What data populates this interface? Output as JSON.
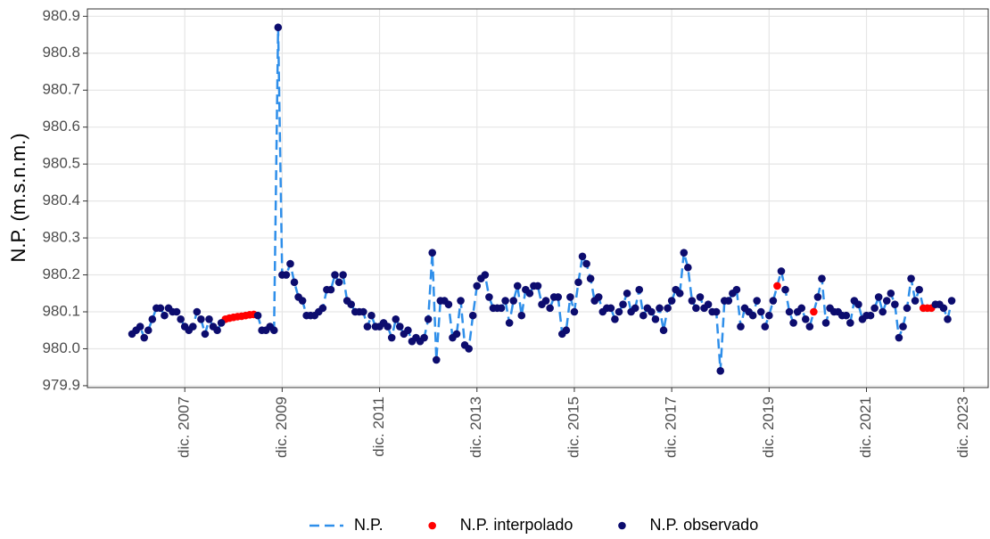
{
  "chart_data": {
    "type": "line",
    "ylabel": "N.P. (m.s.n.m.)",
    "x": [
      "2006-11",
      "2006-12",
      "2007-01",
      "2007-02",
      "2007-03",
      "2007-04",
      "2007-05",
      "2007-06",
      "2007-07",
      "2007-08",
      "2007-09",
      "2007-10",
      "2007-11",
      "2007-12",
      "2008-01",
      "2008-02",
      "2008-03",
      "2008-04",
      "2008-05",
      "2008-06",
      "2008-07",
      "2008-08",
      "2008-09",
      "2008-10",
      "2008-11",
      "2008-12",
      "2009-01",
      "2009-02",
      "2009-03",
      "2009-04",
      "2009-05",
      "2009-06",
      "2009-07",
      "2009-08",
      "2009-09",
      "2009-10",
      "2009-11",
      "2009-12",
      "2010-01",
      "2010-02",
      "2010-03",
      "2010-04",
      "2010-05",
      "2010-06",
      "2010-07",
      "2010-08",
      "2010-09",
      "2010-10",
      "2010-11",
      "2010-12",
      "2011-01",
      "2011-02",
      "2011-03",
      "2011-04",
      "2011-05",
      "2011-06",
      "2011-07",
      "2011-08",
      "2011-09",
      "2011-10",
      "2011-11",
      "2011-12",
      "2012-01",
      "2012-02",
      "2012-03",
      "2012-04",
      "2012-05",
      "2012-06",
      "2012-07",
      "2012-08",
      "2012-09",
      "2012-10",
      "2012-11",
      "2012-12",
      "2013-01",
      "2013-02",
      "2013-03",
      "2013-04",
      "2013-05",
      "2013-06",
      "2013-07",
      "2013-08",
      "2013-09",
      "2013-10",
      "2013-11",
      "2013-12",
      "2014-01",
      "2014-02",
      "2014-03",
      "2014-04",
      "2014-05",
      "2014-06",
      "2014-07",
      "2014-08",
      "2014-09",
      "2014-10",
      "2014-11",
      "2014-12",
      "2015-01",
      "2015-02",
      "2015-03",
      "2015-04",
      "2015-05",
      "2015-06",
      "2015-07",
      "2015-08",
      "2015-09",
      "2015-10",
      "2015-11",
      "2015-12",
      "2016-01",
      "2016-02",
      "2016-03",
      "2016-04",
      "2016-05",
      "2016-06",
      "2016-07",
      "2016-08",
      "2016-09",
      "2016-10",
      "2016-11",
      "2016-12",
      "2017-01",
      "2017-02",
      "2017-03",
      "2017-04",
      "2017-05",
      "2017-06",
      "2017-07",
      "2017-08",
      "2017-09",
      "2017-10",
      "2017-11",
      "2017-12",
      "2018-01",
      "2018-02",
      "2018-03",
      "2018-04",
      "2018-05",
      "2018-06",
      "2018-07",
      "2018-08",
      "2018-09",
      "2018-10",
      "2018-11",
      "2018-12",
      "2019-01",
      "2019-02",
      "2019-03",
      "2019-04",
      "2019-05",
      "2019-06",
      "2019-07",
      "2019-08",
      "2019-09",
      "2019-10",
      "2019-11",
      "2019-12",
      "2020-01",
      "2020-02",
      "2020-03",
      "2020-04",
      "2020-05",
      "2020-06",
      "2020-07",
      "2020-08",
      "2020-09",
      "2020-10",
      "2020-11",
      "2020-12",
      "2021-01",
      "2021-02",
      "2021-03",
      "2021-04",
      "2021-05",
      "2021-06",
      "2021-07",
      "2021-08",
      "2021-09",
      "2021-10",
      "2021-11",
      "2021-12",
      "2022-01",
      "2022-02",
      "2022-03",
      "2022-04",
      "2022-05",
      "2022-06",
      "2022-07",
      "2022-08",
      "2022-09",
      "2022-10",
      "2022-11",
      "2022-12",
      "2023-01",
      "2023-02",
      "2023-03",
      "2023-04",
      "2023-05",
      "2023-06",
      "2023-07",
      "2023-08",
      "2023-09"
    ],
    "series": [
      {
        "name": "N.P.",
        "color": "#2f8fea",
        "style": "dashed",
        "values": [
          980.04,
          980.05,
          980.06,
          980.03,
          980.05,
          980.08,
          980.11,
          980.11,
          980.09,
          980.11,
          980.1,
          980.1,
          980.08,
          980.06,
          980.05,
          980.06,
          980.1,
          980.08,
          980.04,
          980.08,
          980.06,
          980.05,
          980.07,
          980.08,
          980.083,
          980.085,
          980.087,
          980.088,
          980.09,
          980.092,
          980.093,
          980.09,
          980.05,
          980.05,
          980.06,
          980.05,
          980.87,
          980.2,
          980.2,
          980.23,
          980.18,
          980.14,
          980.13,
          980.09,
          980.09,
          980.09,
          980.1,
          980.11,
          980.16,
          980.16,
          980.2,
          980.18,
          980.2,
          980.13,
          980.12,
          980.1,
          980.1,
          980.1,
          980.06,
          980.09,
          980.06,
          980.06,
          980.07,
          980.06,
          980.03,
          980.08,
          980.06,
          980.04,
          980.05,
          980.02,
          980.03,
          980.02,
          980.03,
          980.08,
          980.26,
          979.97,
          980.13,
          980.13,
          980.12,
          980.03,
          980.04,
          980.13,
          980.01,
          980,
          980.09,
          980.17,
          980.19,
          980.2,
          980.14,
          980.11,
          980.11,
          980.11,
          980.13,
          980.07,
          980.13,
          980.17,
          980.09,
          980.16,
          980.15,
          980.17,
          980.17,
          980.12,
          980.13,
          980.11,
          980.14,
          980.14,
          980.04,
          980.05,
          980.14,
          980.1,
          980.18,
          980.25,
          980.23,
          980.19,
          980.13,
          980.14,
          980.1,
          980.11,
          980.11,
          980.08,
          980.1,
          980.12,
          980.15,
          980.1,
          980.11,
          980.16,
          980.09,
          980.11,
          980.1,
          980.08,
          980.11,
          980.05,
          980.11,
          980.13,
          980.16,
          980.15,
          980.26,
          980.22,
          980.13,
          980.11,
          980.14,
          980.11,
          980.12,
          980.1,
          980.1,
          979.94,
          980.13,
          980.13,
          980.15,
          980.16,
          980.06,
          980.11,
          980.1,
          980.09,
          980.13,
          980.1,
          980.06,
          980.09,
          980.13,
          980.17,
          980.21,
          980.16,
          980.1,
          980.07,
          980.1,
          980.11,
          980.08,
          980.06,
          980.1,
          980.14,
          980.19,
          980.07,
          980.11,
          980.1,
          980.1,
          980.09,
          980.09,
          980.07,
          980.13,
          980.12,
          980.08,
          980.09,
          980.09,
          980.11,
          980.14,
          980.1,
          980.13,
          980.15,
          980.12,
          980.03,
          980.06,
          980.11,
          980.19,
          980.13,
          980.16,
          980.11,
          980.11,
          980.11,
          980.12,
          980.12,
          980.11,
          980.08,
          980.13
        ]
      },
      {
        "name": "N.P. interpolado",
        "color": "#ff0000",
        "style": "points",
        "x": [
          "2008-10",
          "2008-11",
          "2008-12",
          "2009-01",
          "2009-02",
          "2009-03",
          "2009-04",
          "2009-05",
          "2020-02",
          "2020-11",
          "2023-02",
          "2023-03",
          "2023-04"
        ],
        "values": [
          980.08,
          980.083,
          980.085,
          980.087,
          980.088,
          980.09,
          980.092,
          980.093,
          980.17,
          980.1,
          980.11,
          980.11,
          980.11
        ]
      },
      {
        "name": "N.P. observado",
        "color": "#0c0c6e",
        "style": "points",
        "values": [
          980.04,
          980.05,
          980.06,
          980.03,
          980.05,
          980.08,
          980.11,
          980.11,
          980.09,
          980.11,
          980.1,
          980.1,
          980.08,
          980.06,
          980.05,
          980.06,
          980.1,
          980.08,
          980.04,
          980.08,
          980.06,
          980.05,
          980.07,
          null,
          null,
          null,
          null,
          null,
          null,
          null,
          null,
          980.09,
          980.05,
          980.05,
          980.06,
          980.05,
          980.87,
          980.2,
          980.2,
          980.23,
          980.18,
          980.14,
          980.13,
          980.09,
          980.09,
          980.09,
          980.1,
          980.11,
          980.16,
          980.16,
          980.2,
          980.18,
          980.2,
          980.13,
          980.12,
          980.1,
          980.1,
          980.1,
          980.06,
          980.09,
          980.06,
          980.06,
          980.07,
          980.06,
          980.03,
          980.08,
          980.06,
          980.04,
          980.05,
          980.02,
          980.03,
          980.02,
          980.03,
          980.08,
          980.26,
          979.97,
          980.13,
          980.13,
          980.12,
          980.03,
          980.04,
          980.13,
          980.01,
          980,
          980.09,
          980.17,
          980.19,
          980.2,
          980.14,
          980.11,
          980.11,
          980.11,
          980.13,
          980.07,
          980.13,
          980.17,
          980.09,
          980.16,
          980.15,
          980.17,
          980.17,
          980.12,
          980.13,
          980.11,
          980.14,
          980.14,
          980.04,
          980.05,
          980.14,
          980.1,
          980.18,
          980.25,
          980.23,
          980.19,
          980.13,
          980.14,
          980.1,
          980.11,
          980.11,
          980.08,
          980.1,
          980.12,
          980.15,
          980.1,
          980.11,
          980.16,
          980.09,
          980.11,
          980.1,
          980.08,
          980.11,
          980.05,
          980.11,
          980.13,
          980.16,
          980.15,
          980.26,
          980.22,
          980.13,
          980.11,
          980.14,
          980.11,
          980.12,
          980.1,
          980.1,
          979.94,
          980.13,
          980.13,
          980.15,
          980.16,
          980.06,
          980.11,
          980.1,
          980.09,
          980.13,
          980.1,
          980.06,
          980.09,
          980.13,
          null,
          980.21,
          980.16,
          980.1,
          980.07,
          980.1,
          980.11,
          980.08,
          980.06,
          null,
          980.14,
          980.19,
          980.07,
          980.11,
          980.1,
          980.1,
          980.09,
          980.09,
          980.07,
          980.13,
          980.12,
          980.08,
          980.09,
          980.09,
          980.11,
          980.14,
          980.1,
          980.13,
          980.15,
          980.12,
          980.03,
          980.06,
          980.11,
          980.19,
          980.13,
          980.16,
          null,
          null,
          null,
          980.12,
          980.12,
          980.11,
          980.08,
          980.13
        ]
      }
    ],
    "xlim": [
      "2005-12",
      "2024-06"
    ],
    "xticks": [
      {
        "value": "2007-12",
        "label": "dic. 2007"
      },
      {
        "value": "2009-12",
        "label": "dic. 2009"
      },
      {
        "value": "2011-12",
        "label": "dic. 2011"
      },
      {
        "value": "2013-12",
        "label": "dic. 2013"
      },
      {
        "value": "2015-12",
        "label": "dic. 2015"
      },
      {
        "value": "2017-12",
        "label": "dic. 2017"
      },
      {
        "value": "2019-12",
        "label": "dic. 2019"
      },
      {
        "value": "2021-12",
        "label": "dic. 2021"
      },
      {
        "value": "2023-12",
        "label": "dic. 2023"
      }
    ],
    "ylim": [
      979.895,
      980.92
    ],
    "yticks": [
      979.9,
      {
        "value": 980,
        "label": "980.0"
      },
      980.1,
      980.2,
      980.3,
      980.4,
      980.5,
      980.6,
      980.7,
      980.8,
      980.9
    ],
    "grid": true,
    "legend": "bottom"
  }
}
